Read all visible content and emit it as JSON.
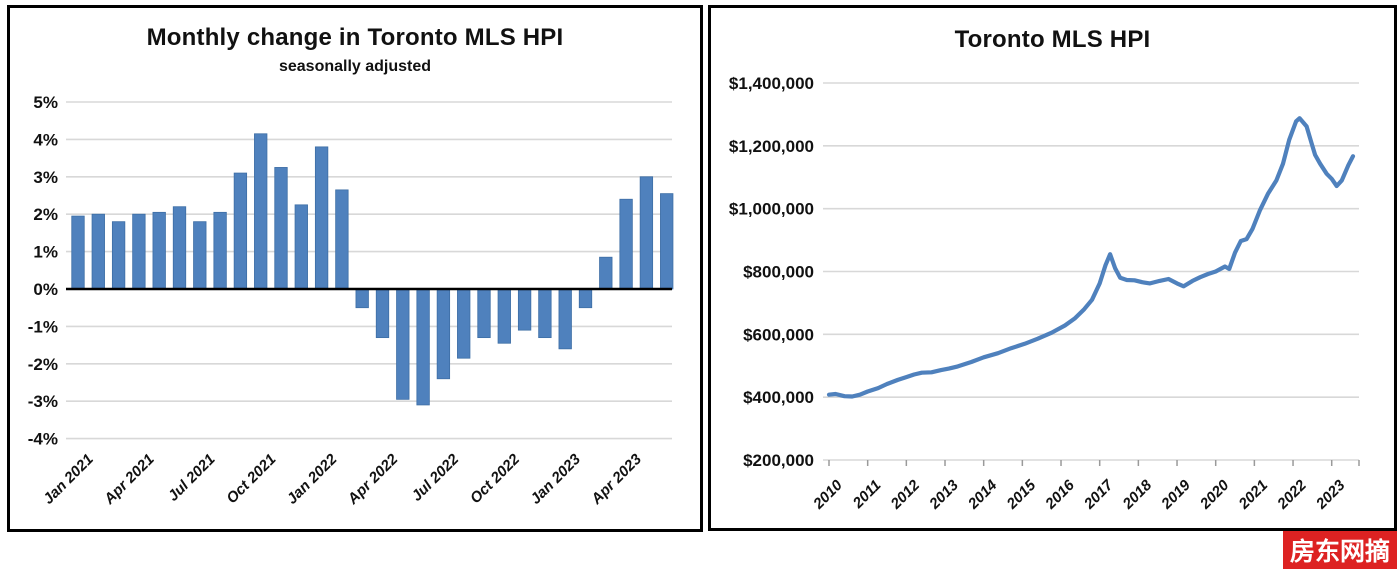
{
  "watermark": {
    "text": "房东网摘",
    "bg": "#dd2222",
    "color": "#ffffff"
  },
  "chart_data": [
    {
      "id": "monthly-change-bar-chart",
      "type": "bar",
      "title": "Monthly change in Toronto MLS HPI",
      "subtitle": "seasonally adjusted",
      "bar_color": "#4F81BD",
      "bar_edge_color": "#3D6EA5",
      "grid_color": "#D8D8D8",
      "zero_axis_color": "#000000",
      "ylim": [
        -4,
        5
      ],
      "grid": true,
      "y_ticks": [
        {
          "v": 5,
          "label": "5%"
        },
        {
          "v": 4,
          "label": "4%"
        },
        {
          "v": 3,
          "label": "3%"
        },
        {
          "v": 2,
          "label": "2%"
        },
        {
          "v": 1,
          "label": "1%"
        },
        {
          "v": 0,
          "label": "0%"
        },
        {
          "v": -1,
          "label": "-1%"
        },
        {
          "v": -2,
          "label": "-2%"
        },
        {
          "v": -3,
          "label": "-3%"
        },
        {
          "v": -4,
          "label": "-4%"
        }
      ],
      "categories": [
        "Jan 2021",
        "Feb 2021",
        "Mar 2021",
        "Apr 2021",
        "May 2021",
        "Jun 2021",
        "Jul 2021",
        "Aug 2021",
        "Sep 2021",
        "Oct 2021",
        "Nov 2021",
        "Dec 2021",
        "Jan 2022",
        "Feb 2022",
        "Mar 2022",
        "Apr 2022",
        "May 2022",
        "Jun 2022",
        "Jul 2022",
        "Aug 2022",
        "Sep 2022",
        "Oct 2022",
        "Nov 2022",
        "Dec 2022",
        "Jan 2023",
        "Feb 2023",
        "Mar 2023",
        "Apr 2023",
        "May 2023",
        "Jun 2023"
      ],
      "values": [
        1.95,
        2.0,
        1.8,
        2.0,
        2.05,
        2.2,
        1.8,
        2.05,
        3.1,
        4.15,
        3.25,
        2.25,
        3.8,
        2.65,
        -0.5,
        -1.3,
        -2.95,
        -3.1,
        -2.4,
        -1.85,
        -1.3,
        -1.45,
        -1.1,
        -1.3,
        -1.6,
        -0.5,
        0.85,
        2.4,
        3.0,
        2.55
      ],
      "x_axis_labels": [
        "Jan 2021",
        "Apr 2021",
        "Jul 2021",
        "Oct 2021",
        "Jan 2022",
        "Apr 2022",
        "Jul 2022",
        "Oct 2022",
        "Jan 2023",
        "Apr 2023"
      ],
      "x_label_every": 3
    },
    {
      "id": "hpi-level-line-chart",
      "type": "line",
      "title": "Toronto MLS HPI",
      "line_color": "#4F81BD",
      "grid_color": "#D8D8D8",
      "axis_color": "#9a9a9a",
      "ylim": [
        200000,
        1400000
      ],
      "grid": true,
      "y_ticks": [
        {
          "v": 1400000,
          "label": "$1,400,000"
        },
        {
          "v": 1200000,
          "label": "$1,200,000"
        },
        {
          "v": 1000000,
          "label": "$1,000,000"
        },
        {
          "v": 800000,
          "label": "$800,000"
        },
        {
          "v": 600000,
          "label": "$600,000"
        },
        {
          "v": 400000,
          "label": "$400,000"
        },
        {
          "v": 200000,
          "label": "$200,000"
        }
      ],
      "x_ticks": [
        "2010",
        "2011",
        "2012",
        "2013",
        "2014",
        "2015",
        "2016",
        "2017",
        "2018",
        "2019",
        "2020",
        "2021",
        "2022",
        "2023"
      ],
      "x_range": [
        2010,
        2023.83
      ],
      "series": [
        {
          "name": "Toronto MLS HPI",
          "points": [
            [
              2010.0,
              408000
            ],
            [
              2010.17,
              410000
            ],
            [
              2010.4,
              403000
            ],
            [
              2010.6,
              402000
            ],
            [
              2010.8,
              408000
            ],
            [
              2011.0,
              418000
            ],
            [
              2011.27,
              429000
            ],
            [
              2011.5,
              442000
            ],
            [
              2011.78,
              455000
            ],
            [
              2012.0,
              464000
            ],
            [
              2012.2,
              472000
            ],
            [
              2012.4,
              478000
            ],
            [
              2012.65,
              479000
            ],
            [
              2012.9,
              486000
            ],
            [
              2013.1,
              491000
            ],
            [
              2013.33,
              498000
            ],
            [
              2013.68,
              512000
            ],
            [
              2014.0,
              527000
            ],
            [
              2014.37,
              540000
            ],
            [
              2014.71,
              556000
            ],
            [
              2015.06,
              570000
            ],
            [
              2015.4,
              586000
            ],
            [
              2015.75,
              605000
            ],
            [
              2016.1,
              628000
            ],
            [
              2016.35,
              650000
            ],
            [
              2016.6,
              680000
            ],
            [
              2016.8,
              710000
            ],
            [
              2017.0,
              762000
            ],
            [
              2017.15,
              820000
            ],
            [
              2017.27,
              855000
            ],
            [
              2017.4,
              810000
            ],
            [
              2017.53,
              780000
            ],
            [
              2017.7,
              773000
            ],
            [
              2017.9,
              772000
            ],
            [
              2018.1,
              766000
            ],
            [
              2018.3,
              762000
            ],
            [
              2018.55,
              770000
            ],
            [
              2018.78,
              776000
            ],
            [
              2019.0,
              762000
            ],
            [
              2019.17,
              753000
            ],
            [
              2019.4,
              770000
            ],
            [
              2019.6,
              782000
            ],
            [
              2019.8,
              792000
            ],
            [
              2020.0,
              800000
            ],
            [
              2020.24,
              816000
            ],
            [
              2020.35,
              808000
            ],
            [
              2020.5,
              860000
            ],
            [
              2020.65,
              897000
            ],
            [
              2020.8,
              903000
            ],
            [
              2020.95,
              935000
            ],
            [
              2021.14,
              994000
            ],
            [
              2021.35,
              1047000
            ],
            [
              2021.57,
              1090000
            ],
            [
              2021.74,
              1143000
            ],
            [
              2021.9,
              1219000
            ],
            [
              2022.08,
              1278000
            ],
            [
              2022.17,
              1288000
            ],
            [
              2022.35,
              1262000
            ],
            [
              2022.48,
              1208000
            ],
            [
              2022.57,
              1171000
            ],
            [
              2022.7,
              1143000
            ],
            [
              2022.87,
              1111000
            ],
            [
              2023.0,
              1095000
            ],
            [
              2023.13,
              1072000
            ],
            [
              2023.26,
              1090000
            ],
            [
              2023.43,
              1138000
            ],
            [
              2023.55,
              1167000
            ]
          ]
        }
      ]
    }
  ]
}
